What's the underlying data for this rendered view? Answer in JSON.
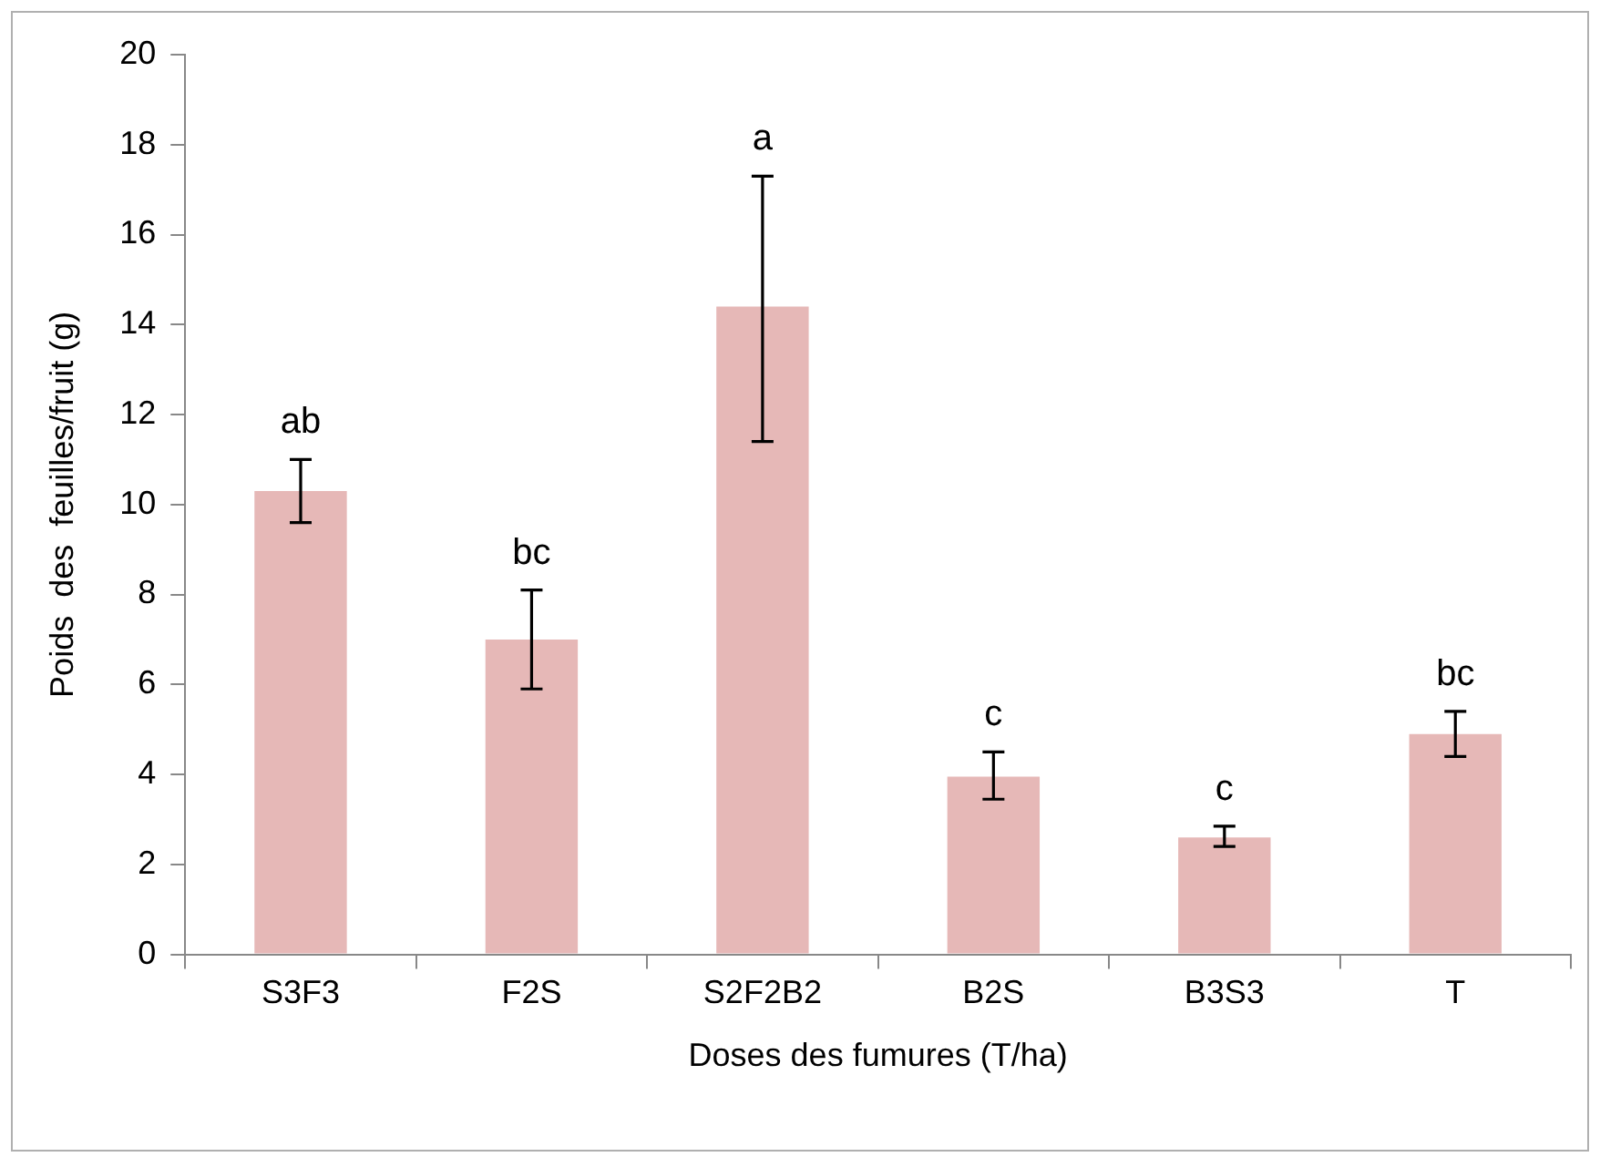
{
  "chart_data": {
    "type": "bar",
    "xlabel": "Doses des fumures (T/ha)",
    "ylabel": "Poids  des  feuilles/fruit (g)",
    "categories": [
      "S3F3",
      "F2S",
      "S2F2B2",
      "B2S",
      "B3S3",
      "T"
    ],
    "values": [
      10.3,
      7.0,
      14.4,
      3.95,
      2.6,
      4.9
    ],
    "errors": [
      [
        9.6,
        11.0
      ],
      [
        5.9,
        8.1
      ],
      [
        11.4,
        17.3
      ],
      [
        3.45,
        4.5
      ],
      [
        2.4,
        2.85
      ],
      [
        4.4,
        5.4
      ]
    ],
    "color": "#e6b8b7",
    "ylim": [
      0,
      20
    ],
    "yticks": [
      0,
      2,
      4,
      6,
      8,
      10,
      12,
      14,
      16,
      18,
      20
    ],
    "grid": false,
    "annotations": [
      {
        "text": "ab",
        "x": "S3F3",
        "y": 11.0
      },
      {
        "text": "bc",
        "x": "F2S",
        "y": 8.1
      },
      {
        "text": "a",
        "x": "S2F2B2",
        "y": 17.3
      },
      {
        "text": "c",
        "x": "B2S",
        "y": 4.5
      },
      {
        "text": "c",
        "x": "B3S3",
        "y": 2.85
      },
      {
        "text": "bc",
        "x": "T",
        "y": 5.4
      }
    ]
  }
}
